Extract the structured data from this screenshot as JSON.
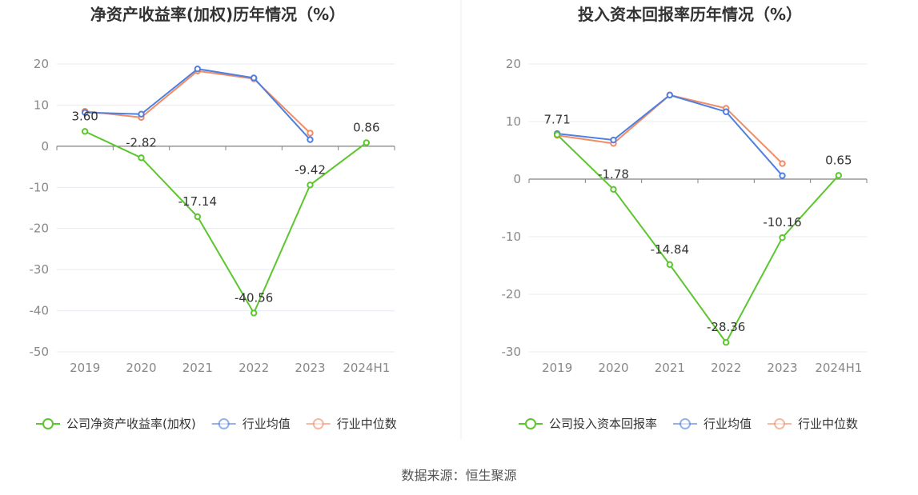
{
  "source": "数据来源：恒生聚源",
  "colors": {
    "company": "#5cc62e",
    "industry_avg": "#4f7fe0",
    "industry_median": "#f28b64",
    "grid": "#e6e9f2",
    "axis": "#808080",
    "tick_text": "#888888",
    "title": "#333333",
    "divider": "#eeeeee"
  },
  "chart_data": [
    {
      "type": "line",
      "title": "净资产收益率(加权)历年情况（%）",
      "categories": [
        "2019",
        "2020",
        "2021",
        "2022",
        "2023",
        "2024H1"
      ],
      "ylim": [
        -50,
        20
      ],
      "yticks": [
        20,
        10,
        0,
        -10,
        -20,
        -30,
        -40,
        -50
      ],
      "series": [
        {
          "name": "公司净资产收益率(加权)",
          "key": "company",
          "values": [
            3.6,
            -2.82,
            -17.14,
            -40.56,
            -9.42,
            0.86
          ],
          "labels": [
            "3.60",
            "-2.82",
            "-17.14",
            "-40.56",
            "-9.42",
            "0.86"
          ]
        },
        {
          "name": "行业均值",
          "key": "industry_avg",
          "values": [
            8.2,
            7.8,
            18.8,
            16.6,
            1.6,
            null
          ]
        },
        {
          "name": "行业中位数",
          "key": "industry_median",
          "values": [
            8.5,
            7.0,
            18.3,
            16.4,
            3.2,
            null
          ]
        }
      ]
    },
    {
      "type": "line",
      "title": "投入资本回报率历年情况（%）",
      "categories": [
        "2019",
        "2020",
        "2021",
        "2022",
        "2023",
        "2024H1"
      ],
      "ylim": [
        -30,
        20
      ],
      "yticks": [
        20,
        10,
        0,
        -10,
        -20,
        -30
      ],
      "series": [
        {
          "name": "公司投入资本回报率",
          "key": "company",
          "values": [
            7.71,
            -1.78,
            -14.84,
            -28.36,
            -10.16,
            0.65
          ],
          "labels": [
            "7.71",
            "-1.78",
            "-14.84",
            "-28.36",
            "-10.16",
            "0.65"
          ]
        },
        {
          "name": "行业均值",
          "key": "industry_avg",
          "values": [
            7.9,
            6.8,
            14.6,
            11.7,
            0.6,
            null
          ]
        },
        {
          "name": "行业中位数",
          "key": "industry_median",
          "values": [
            7.6,
            6.2,
            14.6,
            12.3,
            2.7,
            null
          ]
        }
      ]
    }
  ]
}
